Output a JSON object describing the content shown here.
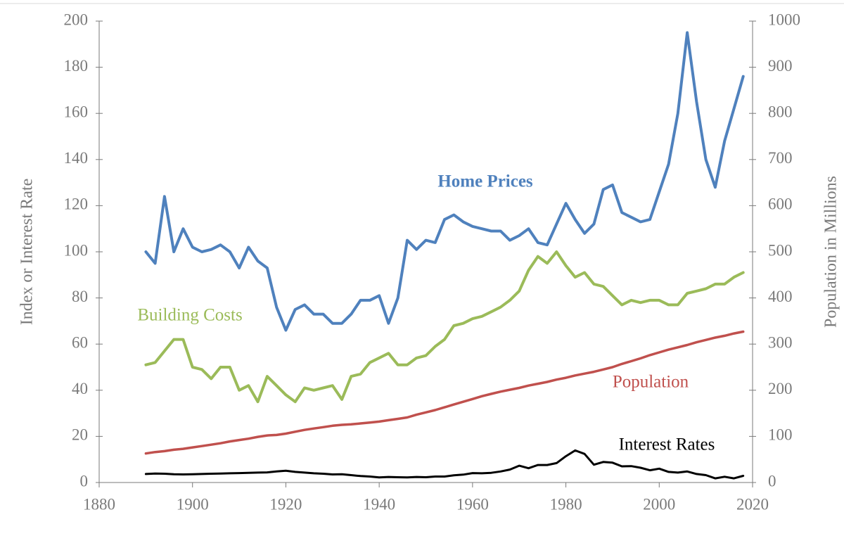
{
  "chart_data": {
    "type": "line",
    "ylabel": "Index or Interest Rate",
    "y2label": "Population in Millions",
    "xlim": [
      1880,
      2020
    ],
    "xticks": [
      1880,
      1900,
      1920,
      1940,
      1960,
      1980,
      2000,
      2020
    ],
    "ylim": [
      0,
      200
    ],
    "yticks": [
      0,
      20,
      40,
      60,
      80,
      100,
      120,
      140,
      160,
      180,
      200
    ],
    "y2lim": [
      0,
      1000
    ],
    "y2ticks": [
      0,
      100,
      200,
      300,
      400,
      500,
      600,
      700,
      800,
      900,
      1000
    ],
    "grid": false,
    "x": [
      1890,
      1892,
      1894,
      1896,
      1898,
      1900,
      1902,
      1904,
      1906,
      1908,
      1910,
      1912,
      1914,
      1916,
      1918,
      1920,
      1922,
      1924,
      1926,
      1928,
      1930,
      1932,
      1934,
      1936,
      1938,
      1940,
      1942,
      1944,
      1946,
      1948,
      1950,
      1952,
      1954,
      1956,
      1958,
      1960,
      1962,
      1964,
      1966,
      1968,
      1970,
      1972,
      1974,
      1976,
      1978,
      1980,
      1982,
      1984,
      1986,
      1988,
      1990,
      1992,
      1994,
      1996,
      1998,
      2000,
      2002,
      2004,
      2006,
      2008,
      2010,
      2012,
      2014,
      2016,
      2018
    ],
    "series": [
      {
        "name": "Home Prices",
        "color": "#4f81bd",
        "values": [
          100,
          95,
          124,
          100,
          110,
          102,
          100,
          101,
          103,
          100,
          93,
          102,
          96,
          93,
          76,
          66,
          75,
          77,
          73,
          73,
          69,
          69,
          73,
          79,
          79,
          81,
          69,
          80,
          105,
          101,
          105,
          104,
          114,
          116,
          113,
          111,
          110,
          109,
          109,
          105,
          107,
          110,
          104,
          103,
          112,
          121,
          114,
          108,
          112,
          127,
          129,
          117,
          115,
          113,
          114,
          126,
          138,
          160,
          195,
          165,
          140,
          128,
          148,
          162,
          176
        ]
      },
      {
        "name": "Building Costs",
        "color": "#9bbb59",
        "values": [
          51,
          52,
          57,
          62,
          62,
          50,
          49,
          45,
          50,
          50,
          40,
          42,
          35,
          46,
          42,
          38,
          35,
          41,
          40,
          41,
          42,
          36,
          46,
          47,
          52,
          54,
          56,
          51,
          51,
          54,
          55,
          59,
          62,
          68,
          69,
          71,
          72,
          74,
          76,
          79,
          83,
          92,
          98,
          95,
          100,
          94,
          89,
          91,
          86,
          85,
          81,
          77,
          79,
          78,
          79,
          79,
          77,
          77,
          82,
          83,
          84,
          86,
          86,
          89,
          91
        ]
      },
      {
        "name": "Population",
        "color": "#c0504d",
        "axis": "y2",
        "values": [
          63,
          66,
          68,
          71,
          73,
          76,
          79,
          82,
          85,
          89,
          92,
          95,
          99,
          102,
          103,
          106,
          110,
          114,
          117,
          120,
          123,
          125,
          126,
          128,
          130,
          132,
          135,
          138,
          141,
          147,
          152,
          157,
          163,
          169,
          175,
          181,
          187,
          192,
          197,
          201,
          205,
          210,
          214,
          218,
          223,
          227,
          232,
          236,
          240,
          245,
          250,
          257,
          263,
          269,
          276,
          282,
          288,
          293,
          298,
          304,
          309,
          314,
          318,
          323,
          327
        ]
      },
      {
        "name": "Interest Rates",
        "color": "#000000",
        "values": [
          3.7,
          3.9,
          3.8,
          3.6,
          3.5,
          3.6,
          3.7,
          3.8,
          3.9,
          4.0,
          4.1,
          4.2,
          4.3,
          4.4,
          4.8,
          5.1,
          4.6,
          4.3,
          4.0,
          3.8,
          3.5,
          3.6,
          3.2,
          2.8,
          2.6,
          2.2,
          2.4,
          2.3,
          2.2,
          2.4,
          2.3,
          2.6,
          2.6,
          3.1,
          3.4,
          4.1,
          4.0,
          4.2,
          4.8,
          5.6,
          7.3,
          6.2,
          7.6,
          7.6,
          8.4,
          11.4,
          13.9,
          12.4,
          7.7,
          8.9,
          8.6,
          7.0,
          7.1,
          6.4,
          5.3,
          6.0,
          4.6,
          4.3,
          4.8,
          3.7,
          3.2,
          1.8,
          2.5,
          1.8,
          2.9
        ]
      }
    ]
  }
}
